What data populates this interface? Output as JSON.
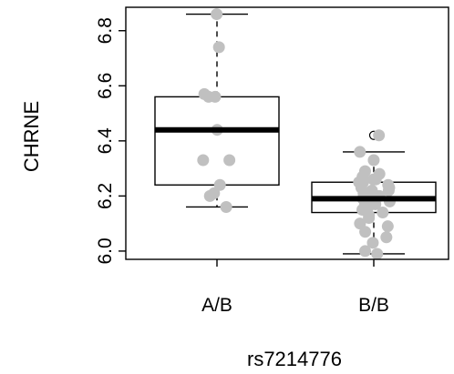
{
  "chart_data": {
    "type": "box",
    "title": "",
    "xlabel": "rs7214776",
    "ylabel": "CHRNE",
    "categories": [
      "A/B",
      "B/B"
    ],
    "ylim": [
      5.97,
      6.885
    ],
    "yticks": [
      6.0,
      6.2,
      6.4,
      6.6,
      6.8
    ],
    "ytick_labels": [
      "6.0",
      "6.2",
      "6.4",
      "6.6",
      "6.8"
    ],
    "grid": false,
    "boxes": [
      {
        "category": "A/B",
        "whisker_low": 6.16,
        "q1": 6.24,
        "median": 6.44,
        "q3": 6.56,
        "whisker_high": 6.86,
        "outliers": []
      },
      {
        "category": "B/B",
        "whisker_low": 5.99,
        "q1": 6.14,
        "median": 6.19,
        "q3": 6.25,
        "whisker_high": 6.36,
        "outliers": [
          6.42
        ]
      }
    ],
    "points": [
      {
        "category": "A/B",
        "values": [
          6.86,
          6.74,
          6.57,
          6.56,
          6.56,
          6.44,
          6.33,
          6.33,
          6.24,
          6.21,
          6.2,
          6.16
        ]
      },
      {
        "category": "B/B",
        "values": [
          6.42,
          6.36,
          6.33,
          6.29,
          6.28,
          6.27,
          6.26,
          6.26,
          6.25,
          6.25,
          6.24,
          6.23,
          6.23,
          6.22,
          6.22,
          6.21,
          6.21,
          6.2,
          6.2,
          6.19,
          6.19,
          6.18,
          6.18,
          6.17,
          6.17,
          6.16,
          6.15,
          6.14,
          6.13,
          6.12,
          6.1,
          6.09,
          6.07,
          6.05,
          6.03,
          6.0,
          5.99
        ]
      }
    ],
    "colors": {
      "points": "#c0c0c0",
      "box_fill": "#ffffff",
      "lines": "#000000",
      "median": "#000000"
    }
  }
}
